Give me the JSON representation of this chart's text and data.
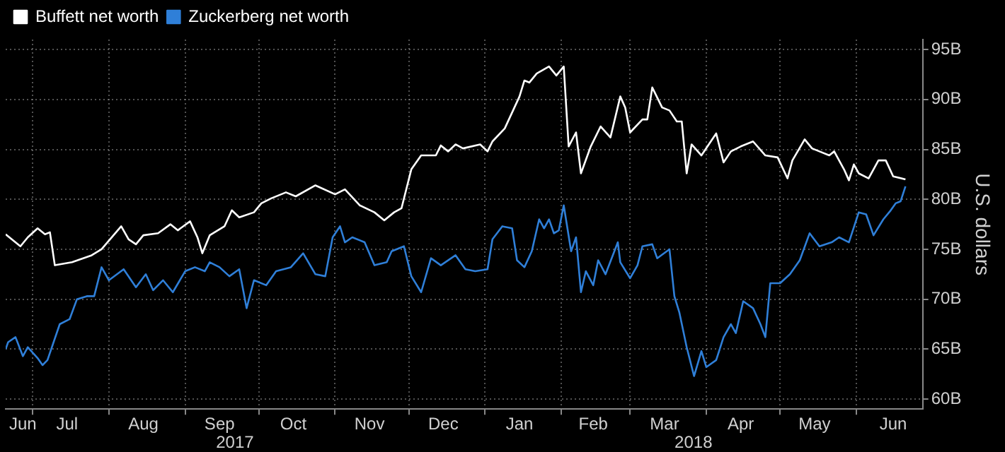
{
  "chart_data": {
    "type": "line",
    "ylabel": "U.S. dollars",
    "legend": "top left",
    "grid": true,
    "marker": "none",
    "line_style": "solid",
    "xlim": [
      "2017-06-20",
      "2018-06-28"
    ],
    "ylim": [
      59,
      96
    ],
    "yticks": [
      {
        "value": 60,
        "label": "60B"
      },
      {
        "value": 65,
        "label": "65B"
      },
      {
        "value": 70,
        "label": "70B"
      },
      {
        "value": 75,
        "label": "75B"
      },
      {
        "value": 80,
        "label": "80B"
      },
      {
        "value": 85,
        "label": "85B"
      },
      {
        "value": 90,
        "label": "90B"
      },
      {
        "value": 95,
        "label": "95B"
      }
    ],
    "xticks": [
      {
        "value": "2017-06-27",
        "label": "Jun"
      },
      {
        "value": "2017-07-01",
        "label": null
      },
      {
        "value": "2017-07-15",
        "label": "Jul"
      },
      {
        "value": "2017-08-01",
        "label": null
      },
      {
        "value": "2017-08-15",
        "label": "Aug"
      },
      {
        "value": "2017-09-01",
        "label": null
      },
      {
        "value": "2017-09-15",
        "label": "Sep"
      },
      {
        "value": "2017-10-01",
        "label": null
      },
      {
        "value": "2017-10-15",
        "label": "Oct"
      },
      {
        "value": "2017-11-01",
        "label": null
      },
      {
        "value": "2017-11-15",
        "label": "Nov"
      },
      {
        "value": "2017-12-01",
        "label": null
      },
      {
        "value": "2017-12-15",
        "label": "Dec"
      },
      {
        "value": "2018-01-01",
        "label": null
      },
      {
        "value": "2018-01-15",
        "label": "Jan"
      },
      {
        "value": "2018-02-01",
        "label": null
      },
      {
        "value": "2018-02-14",
        "label": "Feb"
      },
      {
        "value": "2018-03-01",
        "label": null
      },
      {
        "value": "2018-03-15",
        "label": "Mar"
      },
      {
        "value": "2018-04-01",
        "label": null
      },
      {
        "value": "2018-04-15",
        "label": "Apr"
      },
      {
        "value": "2018-05-01",
        "label": null
      },
      {
        "value": "2018-05-15",
        "label": "May"
      },
      {
        "value": "2018-06-01",
        "label": null
      },
      {
        "value": "2018-06-16",
        "label": "Jun"
      }
    ],
    "annotations": [
      "2017",
      "2018"
    ],
    "series": [
      {
        "name": "Buffett net worth",
        "color": "#ffffff",
        "x": [
          "2017-06-20",
          "2017-06-26",
          "2017-06-29",
          "2017-07-03",
          "2017-07-06",
          "2017-07-08",
          "2017-07-10",
          "2017-07-17",
          "2017-07-25",
          "2017-07-29",
          "2017-08-06",
          "2017-08-09",
          "2017-08-12",
          "2017-08-15",
          "2017-08-21",
          "2017-08-26",
          "2017-08-29",
          "2017-09-03",
          "2017-09-06",
          "2017-09-08",
          "2017-09-11",
          "2017-09-17",
          "2017-09-20",
          "2017-09-23",
          "2017-09-29",
          "2017-10-02",
          "2017-10-06",
          "2017-10-12",
          "2017-10-16",
          "2017-10-24",
          "2017-11-01",
          "2017-11-05",
          "2017-11-11",
          "2017-11-17",
          "2017-11-21",
          "2017-11-25",
          "2017-11-28",
          "2017-12-02",
          "2017-12-06",
          "2017-12-12",
          "2017-12-14",
          "2017-12-17",
          "2017-12-20",
          "2017-12-23",
          "2017-12-30",
          "2018-01-02",
          "2018-01-04",
          "2018-01-09",
          "2018-01-15",
          "2018-01-17",
          "2018-01-19",
          "2018-01-22",
          "2018-01-27",
          "2018-01-30",
          "2018-02-02",
          "2018-02-04",
          "2018-02-07",
          "2018-02-09",
          "2018-02-13",
          "2018-02-17",
          "2018-02-21",
          "2018-02-25",
          "2018-02-27",
          "2018-03-01",
          "2018-03-06",
          "2018-03-08",
          "2018-03-10",
          "2018-03-14",
          "2018-03-17",
          "2018-03-20",
          "2018-03-22",
          "2018-03-24",
          "2018-03-26",
          "2018-03-30",
          "2018-04-05",
          "2018-04-08",
          "2018-04-11",
          "2018-04-15",
          "2018-04-20",
          "2018-04-25",
          "2018-04-30",
          "2018-05-04",
          "2018-05-06",
          "2018-05-11",
          "2018-05-14",
          "2018-05-17",
          "2018-05-21",
          "2018-05-23",
          "2018-05-27",
          "2018-05-29",
          "2018-05-31",
          "2018-06-02",
          "2018-06-06",
          "2018-06-10",
          "2018-06-13",
          "2018-06-16",
          "2018-06-21"
        ],
        "values": [
          76.5,
          75.3,
          76.2,
          77.1,
          76.5,
          76.7,
          73.4,
          73.7,
          74.4,
          75.0,
          77.3,
          76.0,
          75.5,
          76.4,
          76.6,
          77.5,
          76.9,
          77.8,
          76.2,
          74.6,
          76.4,
          77.3,
          78.9,
          78.2,
          78.7,
          79.6,
          80.1,
          80.7,
          80.3,
          81.4,
          80.5,
          81.0,
          79.4,
          78.7,
          77.9,
          78.7,
          79.1,
          83.0,
          84.4,
          84.4,
          85.4,
          84.8,
          85.5,
          85.1,
          85.5,
          84.8,
          85.8,
          87.1,
          90.3,
          91.9,
          91.7,
          92.6,
          93.3,
          92.4,
          93.3,
          85.3,
          86.7,
          82.6,
          85.3,
          87.3,
          86.2,
          90.3,
          89.2,
          86.7,
          88.0,
          88.0,
          91.2,
          89.2,
          88.9,
          87.8,
          87.8,
          82.6,
          85.5,
          84.4,
          86.6,
          83.7,
          84.8,
          85.3,
          85.8,
          84.4,
          84.2,
          82.1,
          83.9,
          86.0,
          85.1,
          84.8,
          84.4,
          84.8,
          83.0,
          81.9,
          83.5,
          82.6,
          82.1,
          83.9,
          83.9,
          82.3,
          82.0
        ]
      },
      {
        "name": "Zuckerberg net worth",
        "color": "#2f7fd8",
        "x": [
          "2017-06-20",
          "2017-06-21",
          "2017-06-24",
          "2017-06-27",
          "2017-06-29",
          "2017-07-03",
          "2017-07-05",
          "2017-07-07",
          "2017-07-12",
          "2017-07-16",
          "2017-07-19",
          "2017-07-23",
          "2017-07-26",
          "2017-07-29",
          "2017-08-01",
          "2017-08-07",
          "2017-08-12",
          "2017-08-16",
          "2017-08-19",
          "2017-08-23",
          "2017-08-27",
          "2017-09-01",
          "2017-09-05",
          "2017-09-09",
          "2017-09-11",
          "2017-09-15",
          "2017-09-19",
          "2017-09-23",
          "2017-09-26",
          "2017-09-29",
          "2017-10-04",
          "2017-10-08",
          "2017-10-14",
          "2017-10-19",
          "2017-10-24",
          "2017-10-28",
          "2017-10-31",
          "2017-11-03",
          "2017-11-05",
          "2017-11-08",
          "2017-11-13",
          "2017-11-17",
          "2017-11-22",
          "2017-11-24",
          "2017-11-29",
          "2017-12-02",
          "2017-12-06",
          "2017-12-10",
          "2017-12-14",
          "2017-12-20",
          "2017-12-24",
          "2017-12-28",
          "2018-01-02",
          "2018-01-04",
          "2018-01-08",
          "2018-01-12",
          "2018-01-14",
          "2018-01-17",
          "2018-01-20",
          "2018-01-23",
          "2018-01-25",
          "2018-01-27",
          "2018-01-29",
          "2018-01-31",
          "2018-02-02",
          "2018-02-05",
          "2018-02-07",
          "2018-02-09",
          "2018-02-11",
          "2018-02-14",
          "2018-02-16",
          "2018-02-19",
          "2018-02-24",
          "2018-02-25",
          "2018-03-01",
          "2018-03-04",
          "2018-03-06",
          "2018-03-10",
          "2018-03-12",
          "2018-03-17",
          "2018-03-19",
          "2018-03-21",
          "2018-03-24",
          "2018-03-27",
          "2018-03-30",
          "2018-04-01",
          "2018-04-05",
          "2018-04-08",
          "2018-04-11",
          "2018-04-13",
          "2018-04-16",
          "2018-04-20",
          "2018-04-23",
          "2018-04-25",
          "2018-04-27",
          "2018-05-01",
          "2018-05-05",
          "2018-05-09",
          "2018-05-13",
          "2018-05-17",
          "2018-05-22",
          "2018-05-25",
          "2018-05-29",
          "2018-06-02",
          "2018-06-05",
          "2018-06-08",
          "2018-06-12",
          "2018-06-15",
          "2018-06-17",
          "2018-06-19",
          "2018-06-21"
        ],
        "values": [
          65.0,
          65.7,
          66.2,
          64.3,
          65.2,
          64.1,
          63.4,
          63.9,
          67.5,
          68.0,
          70.0,
          70.3,
          70.3,
          73.2,
          71.9,
          73.0,
          71.2,
          72.5,
          70.9,
          71.9,
          70.7,
          72.8,
          73.2,
          72.8,
          73.7,
          73.2,
          72.3,
          73.0,
          69.1,
          71.9,
          71.4,
          72.8,
          73.2,
          74.6,
          72.5,
          72.3,
          76.2,
          77.3,
          75.7,
          76.2,
          75.7,
          73.4,
          73.7,
          74.8,
          75.3,
          72.3,
          70.7,
          74.1,
          73.4,
          74.4,
          73.0,
          72.8,
          73.0,
          76.0,
          77.3,
          77.1,
          73.9,
          73.2,
          74.8,
          78.0,
          77.1,
          78.0,
          76.6,
          76.9,
          79.4,
          74.8,
          76.2,
          70.7,
          72.8,
          71.4,
          73.9,
          72.5,
          75.7,
          73.7,
          72.1,
          73.4,
          75.3,
          75.5,
          74.1,
          75.0,
          70.3,
          68.7,
          65.2,
          62.3,
          64.8,
          63.2,
          63.9,
          66.2,
          67.5,
          66.6,
          69.8,
          69.1,
          67.5,
          66.2,
          71.6,
          71.6,
          72.5,
          73.9,
          76.6,
          75.3,
          75.7,
          76.2,
          75.7,
          78.7,
          78.5,
          76.4,
          78.0,
          78.9,
          79.6,
          79.8,
          81.3
        ]
      }
    ]
  }
}
